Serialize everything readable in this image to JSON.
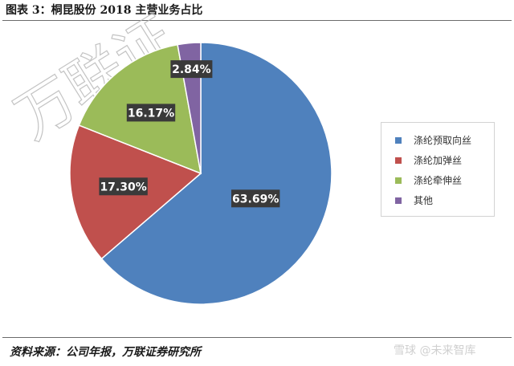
{
  "title": "图表 3：桐昆股份 2018 主营业务占比",
  "source": "资料来源：公司年报，万联证券研究所",
  "watermark": "万联证",
  "footer_logo": "雪球 @未来智库",
  "chart_data": {
    "type": "pie",
    "title": "图表 3：桐昆股份 2018 主营业务占比",
    "legend_position": "right",
    "slices": [
      {
        "label": "涤纶预取向丝",
        "value": 63.69,
        "display": "63.69%",
        "color": "#4f81bd"
      },
      {
        "label": "涤纶加弹丝",
        "value": 17.3,
        "display": "17.30%",
        "color": "#c0504d"
      },
      {
        "label": "涤纶牵伸丝",
        "value": 16.17,
        "display": "16.17%",
        "color": "#9bbb59"
      },
      {
        "label": "其他",
        "value": 2.84,
        "display": "2.84%",
        "color": "#8064a2"
      }
    ]
  }
}
